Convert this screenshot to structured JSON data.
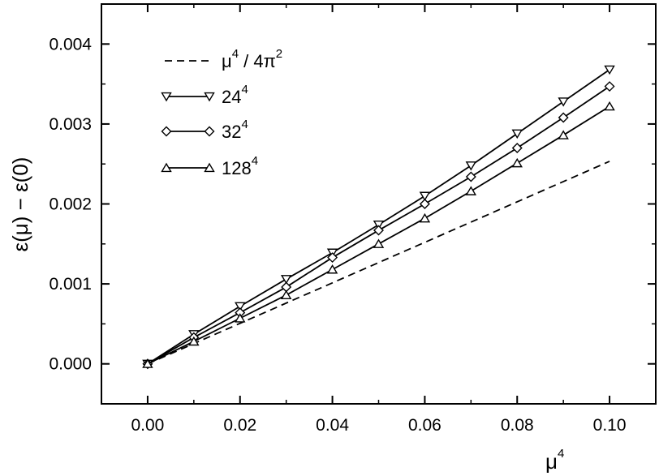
{
  "chart_data": {
    "type": "line",
    "title": "",
    "xlabel": {
      "base": "μ",
      "sup": "4"
    },
    "ylabel": "ε(μ) − ε(0)",
    "xlim": [
      -0.01,
      0.11
    ],
    "ylim": [
      -0.0005,
      0.0045
    ],
    "xticks": [
      0.0,
      0.02,
      0.04,
      0.06,
      0.08,
      0.1
    ],
    "xtick_labels": [
      "0.00",
      "0.02",
      "0.04",
      "0.06",
      "0.08",
      "0.10"
    ],
    "yticks": [
      0.0,
      0.001,
      0.002,
      0.003,
      0.004
    ],
    "ytick_labels": [
      "0.000",
      "0.001",
      "0.002",
      "0.003",
      "0.004"
    ],
    "grid": false,
    "legend_position": "top-left",
    "series": [
      {
        "name": "μ⁴ / 4π²",
        "label_parts": {
          "a": "μ",
          "a_sup": "4",
          "b": " / 4π",
          "b_sup": "2"
        },
        "style": "dashed",
        "marker": "none",
        "x": [
          0.0,
          0.1
        ],
        "y": [
          0.0,
          0.002533
        ]
      },
      {
        "name": "24⁴",
        "label_parts": {
          "a": "24",
          "a_sup": "4"
        },
        "style": "solid",
        "marker": "triangle-down",
        "x": [
          0.0,
          0.01,
          0.02,
          0.03,
          0.04,
          0.05,
          0.06,
          0.07,
          0.08,
          0.09,
          0.1
        ],
        "y": [
          0.0,
          0.00037,
          0.00072,
          0.00106,
          0.00139,
          0.00174,
          0.0021,
          0.00248,
          0.00288,
          0.00328,
          0.00368
        ]
      },
      {
        "name": "32⁴",
        "label_parts": {
          "a": "32",
          "a_sup": "4"
        },
        "style": "solid",
        "marker": "diamond",
        "x": [
          0.0,
          0.01,
          0.02,
          0.03,
          0.04,
          0.05,
          0.06,
          0.07,
          0.08,
          0.09,
          0.1
        ],
        "y": [
          0.0,
          0.00033,
          0.00064,
          0.00096,
          0.00133,
          0.00167,
          0.002,
          0.00234,
          0.0027,
          0.00308,
          0.00347
        ]
      },
      {
        "name": "128⁴",
        "label_parts": {
          "a": "128",
          "a_sup": "4"
        },
        "style": "solid",
        "marker": "triangle-up",
        "x": [
          0.0,
          0.01,
          0.02,
          0.03,
          0.04,
          0.05,
          0.06,
          0.07,
          0.08,
          0.09,
          0.1
        ],
        "y": [
          0.0,
          0.00028,
          0.00057,
          0.00086,
          0.00118,
          0.0015,
          0.00182,
          0.00216,
          0.00251,
          0.00286,
          0.00322
        ]
      }
    ],
    "colors": {
      "ink": "#000000",
      "background": "#ffffff"
    }
  }
}
